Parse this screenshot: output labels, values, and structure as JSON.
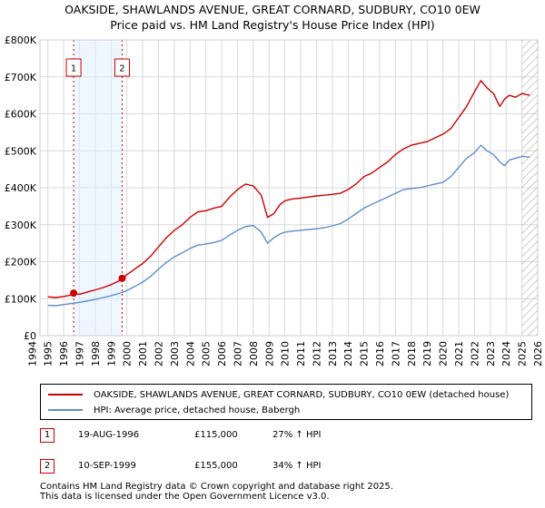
{
  "chart_data": {
    "type": "line",
    "title": "OAKSIDE, SHAWLANDS AVENUE, GREAT CORNARD, SUDBURY, CO10 0EW",
    "subtitle": "Price paid vs. HM Land Registry's House Price Index (HPI)",
    "xlabel": "",
    "ylabel": "",
    "xlim": [
      1994.5,
      2026.0
    ],
    "ylim": [
      0,
      800000
    ],
    "y_ticks": [
      0,
      100000,
      200000,
      300000,
      400000,
      500000,
      600000,
      700000,
      800000
    ],
    "y_tick_labels": [
      "£0",
      "£100K",
      "£200K",
      "£300K",
      "£400K",
      "£500K",
      "£600K",
      "£700K",
      "£800K"
    ],
    "x_ticks": [
      1994,
      1995,
      1996,
      1997,
      1998,
      1999,
      2000,
      2001,
      2002,
      2003,
      2004,
      2005,
      2006,
      2007,
      2008,
      2009,
      2010,
      2011,
      2012,
      2013,
      2014,
      2015,
      2016,
      2017,
      2018,
      2019,
      2020,
      2021,
      2022,
      2023,
      2024,
      2025,
      2026
    ],
    "x_tick_labels": [
      "1994",
      "1995",
      "1996",
      "1997",
      "1998",
      "1999",
      "2000",
      "2001",
      "2002",
      "2003",
      "2004",
      "2005",
      "2006",
      "2007",
      "2008",
      "2009",
      "2010",
      "2011",
      "2012",
      "2013",
      "2014",
      "2015",
      "2016",
      "2017",
      "2018",
      "2019",
      "2020",
      "2021",
      "2022",
      "2023",
      "2024",
      "2025",
      "2026"
    ],
    "grid": true,
    "colors": {
      "property": "#cc0000",
      "hpi": "#5b8fc9",
      "grid": "#d8d8d8",
      "marker": "#cc0000",
      "shade": "#ddeeff"
    },
    "series": [
      {
        "name": "OAKSIDE, SHAWLANDS AVENUE, GREAT CORNARD, SUDBURY, CO10 0EW (detached house)",
        "color": "#cc0000",
        "x": [
          1995.0,
          1995.5,
          1996.0,
          1996.5,
          1996.63,
          1997.0,
          1997.5,
          1998.0,
          1998.5,
          1999.0,
          1999.5,
          1999.7,
          2000.0,
          2000.5,
          2001.0,
          2001.5,
          2002.0,
          2002.5,
          2003.0,
          2003.5,
          2004.0,
          2004.5,
          2005.0,
          2005.5,
          2006.0,
          2006.5,
          2007.0,
          2007.5,
          2008.0,
          2008.5,
          2008.9,
          2009.3,
          2009.7,
          2010.0,
          2010.5,
          2011.0,
          2011.5,
          2012.0,
          2012.5,
          2013.0,
          2013.5,
          2014.0,
          2014.5,
          2015.0,
          2015.5,
          2016.0,
          2016.5,
          2017.0,
          2017.5,
          2018.0,
          2018.5,
          2019.0,
          2019.5,
          2020.0,
          2020.5,
          2021.0,
          2021.5,
          2022.0,
          2022.4,
          2022.8,
          2023.2,
          2023.6,
          2023.9,
          2024.2,
          2024.6,
          2025.0,
          2025.5
        ],
        "values": [
          105000,
          103000,
          106000,
          110000,
          115000,
          112000,
          118000,
          124000,
          130000,
          138000,
          148000,
          155000,
          165000,
          180000,
          195000,
          215000,
          240000,
          265000,
          285000,
          300000,
          320000,
          335000,
          338000,
          345000,
          350000,
          375000,
          395000,
          410000,
          405000,
          380000,
          320000,
          330000,
          355000,
          365000,
          370000,
          372000,
          375000,
          378000,
          380000,
          382000,
          385000,
          395000,
          410000,
          430000,
          440000,
          455000,
          470000,
          490000,
          505000,
          515000,
          520000,
          525000,
          535000,
          545000,
          560000,
          590000,
          620000,
          660000,
          690000,
          670000,
          655000,
          620000,
          640000,
          650000,
          645000,
          655000,
          650000
        ]
      },
      {
        "name": "HPI: Average price, detached house, Babergh",
        "color": "#5b8fc9",
        "x": [
          1995.0,
          1995.5,
          1996.0,
          1996.5,
          1997.0,
          1997.5,
          1998.0,
          1998.5,
          1999.0,
          1999.5,
          2000.0,
          2000.5,
          2001.0,
          2001.5,
          2002.0,
          2002.5,
          2003.0,
          2003.5,
          2004.0,
          2004.5,
          2005.0,
          2005.5,
          2006.0,
          2006.5,
          2007.0,
          2007.5,
          2008.0,
          2008.5,
          2008.9,
          2009.3,
          2009.7,
          2010.0,
          2010.5,
          2011.0,
          2011.5,
          2012.0,
          2012.5,
          2013.0,
          2013.5,
          2014.0,
          2014.5,
          2015.0,
          2015.5,
          2016.0,
          2016.5,
          2017.0,
          2017.5,
          2018.0,
          2018.5,
          2019.0,
          2019.5,
          2020.0,
          2020.5,
          2021.0,
          2021.5,
          2022.0,
          2022.4,
          2022.8,
          2023.2,
          2023.6,
          2023.9,
          2024.2,
          2024.6,
          2025.0,
          2025.5
        ],
        "values": [
          82000,
          81000,
          84000,
          87000,
          90000,
          94000,
          98000,
          103000,
          108000,
          114000,
          122000,
          133000,
          145000,
          160000,
          180000,
          198000,
          213000,
          224000,
          236000,
          245000,
          248000,
          252000,
          258000,
          272000,
          285000,
          295000,
          298000,
          280000,
          250000,
          265000,
          275000,
          280000,
          283000,
          285000,
          287000,
          289000,
          292000,
          297000,
          303000,
          315000,
          330000,
          345000,
          355000,
          365000,
          375000,
          385000,
          395000,
          398000,
          400000,
          405000,
          410000,
          415000,
          430000,
          455000,
          480000,
          495000,
          515000,
          500000,
          490000,
          470000,
          460000,
          475000,
          480000,
          485000,
          483000
        ]
      }
    ],
    "annotations": [
      {
        "label": "1",
        "x": 1996.63,
        "price": 115000
      },
      {
        "label": "2",
        "x": 1999.7,
        "price": 155000
      }
    ]
  },
  "legend": {
    "property": "OAKSIDE, SHAWLANDS AVENUE, GREAT CORNARD, SUDBURY, CO10 0EW (detached house)",
    "hpi": "HPI: Average price, detached house, Babergh"
  },
  "sales": [
    {
      "num": "1",
      "date": "19-AUG-1996",
      "price": "£115,000",
      "hpi": "27% ↑ HPI"
    },
    {
      "num": "2",
      "date": "10-SEP-1999",
      "price": "£155,000",
      "hpi": "34% ↑ HPI"
    }
  ],
  "footer": {
    "line1": "Contains HM Land Registry data © Crown copyright and database right 2025.",
    "line2": "This data is licensed under the Open Government Licence v3.0."
  }
}
